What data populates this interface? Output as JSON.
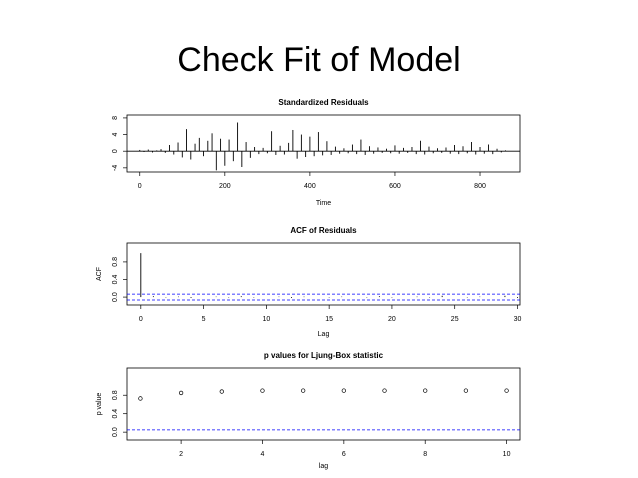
{
  "title": "Check Fit of Model",
  "chart_data": [
    {
      "type": "spike",
      "title": "Standardized Residuals",
      "xlabel": "Time",
      "color": "#000000",
      "x": [
        0,
        10,
        20,
        30,
        40,
        50,
        60,
        70,
        80,
        90,
        100,
        110,
        120,
        130,
        140,
        150,
        160,
        170,
        180,
        190,
        200,
        210,
        220,
        230,
        240,
        250,
        260,
        270,
        280,
        290,
        300,
        310,
        320,
        330,
        340,
        350,
        360,
        370,
        380,
        390,
        400,
        410,
        420,
        430,
        440,
        450,
        460,
        470,
        480,
        490,
        500,
        510,
        520,
        530,
        540,
        550,
        560,
        570,
        580,
        590,
        600,
        610,
        620,
        630,
        640,
        650,
        660,
        670,
        680,
        690,
        700,
        710,
        720,
        730,
        740,
        750,
        760,
        770,
        780,
        790,
        800,
        810,
        820,
        830,
        840,
        850,
        860
      ],
      "values": [
        0.3,
        -0.2,
        0.4,
        -0.3,
        0.2,
        0.5,
        -0.4,
        1.5,
        -0.8,
        2.1,
        -1.5,
        5.3,
        -2.0,
        1.8,
        3.2,
        -1.2,
        2.5,
        4.3,
        -4.6,
        3.0,
        -3.5,
        2.8,
        -2.4,
        6.9,
        -3.8,
        2.2,
        -1.6,
        1.0,
        -0.7,
        0.8,
        -0.5,
        4.8,
        -0.9,
        1.3,
        -0.8,
        2.0,
        5.1,
        -1.8,
        4.0,
        -1.4,
        3.5,
        -1.2,
        4.6,
        -1.0,
        2.4,
        -0.9,
        1.1,
        -0.6,
        0.7,
        -0.5,
        1.6,
        -0.7,
        2.8,
        -0.9,
        1.2,
        -0.6,
        0.9,
        -0.4,
        0.6,
        -0.5,
        1.4,
        -0.6,
        0.8,
        -0.4,
        1.0,
        -0.7,
        2.5,
        -0.8,
        1.1,
        -0.5,
        0.7,
        -0.4,
        0.9,
        -0.6,
        1.5,
        -0.7,
        1.2,
        -0.5,
        2.2,
        -0.8,
        1.0,
        -0.6,
        1.6,
        -0.7,
        0.6,
        -0.3,
        0.2
      ],
      "xlim": [
        -30,
        894
      ],
      "xticks": [
        0,
        200,
        400,
        600,
        800
      ],
      "ylim": [
        -5,
        8.7
      ],
      "yticks": [
        -4,
        0,
        4,
        8
      ],
      "hlines": [
        0
      ],
      "hline_color": "#000000",
      "hline_dashed": false
    },
    {
      "type": "spike",
      "title": "ACF of Residuals",
      "xlabel": "Lag",
      "ylabel": "ACF",
      "color": "#000000",
      "x": [
        0,
        1,
        2,
        3,
        4,
        5,
        6,
        7,
        8,
        9,
        10,
        11,
        12,
        13,
        14,
        15,
        16,
        17,
        18,
        19,
        20,
        21,
        22,
        23,
        24,
        25,
        26,
        27,
        28,
        29,
        30
      ],
      "values": [
        1,
        0.02,
        -0.01,
        0.01,
        -0.02,
        0.0,
        0.01,
        -0.01,
        0.02,
        -0.01,
        0.0,
        0.01,
        -0.02,
        0.01,
        0.0,
        -0.01,
        0.01,
        0.0,
        -0.01,
        0.02,
        -0.01,
        0.0,
        0.01,
        -0.01,
        0.03,
        0.0,
        -0.01,
        0.01,
        0.0,
        0.03,
        -0.02
      ],
      "xlim": [
        -1.1,
        30.2
      ],
      "xticks": [
        0,
        5,
        10,
        15,
        20,
        25,
        30
      ],
      "ylim": [
        -0.18,
        1.23
      ],
      "yticks": [
        {
          "value": 0,
          "label": "0.0"
        },
        {
          "value": 0.4,
          "label": "0.4"
        },
        {
          "value": 0.8,
          "label": "0.8"
        }
      ],
      "hlines": [
        0.067,
        -0.067
      ],
      "hline_color": "#0000ff",
      "hline_dashed": true
    },
    {
      "type": "scatter",
      "title": "p values for Ljung-Box statistic",
      "xlabel": "lag",
      "ylabel": "p value",
      "color": "#000000",
      "x": [
        1,
        2,
        3,
        4,
        5,
        6,
        7,
        8,
        9,
        10
      ],
      "values": [
        0.73,
        0.85,
        0.88,
        0.9,
        0.9,
        0.9,
        0.9,
        0.9,
        0.9,
        0.9
      ],
      "xlim": [
        0.67,
        10.33
      ],
      "xticks": [
        2,
        4,
        6,
        8,
        10
      ],
      "ylim": [
        -0.17,
        1.39
      ],
      "yticks": [
        {
          "value": 0,
          "label": "0.0"
        },
        {
          "value": 0.4,
          "label": "0.4"
        },
        {
          "value": 0.8,
          "label": "0.8"
        }
      ],
      "hlines": [
        0.05
      ],
      "hline_color": "#0000ff",
      "hline_dashed": true
    }
  ]
}
